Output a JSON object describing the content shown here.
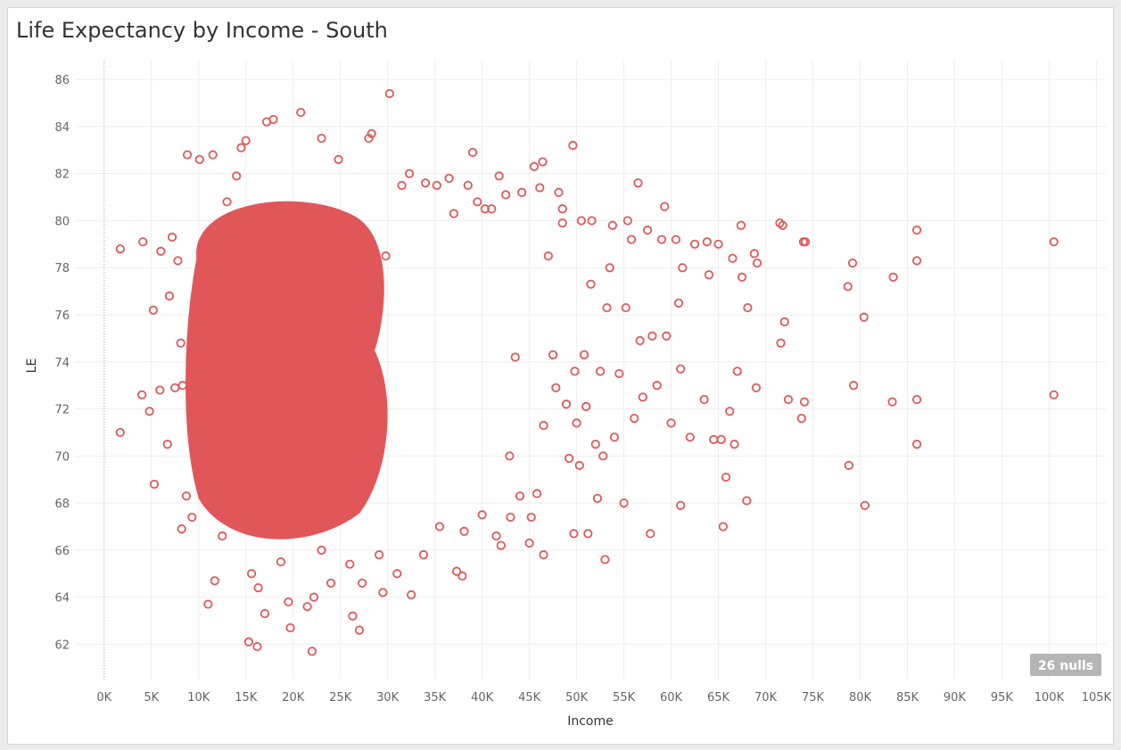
{
  "title": "Life Expectancy by Income - South",
  "nulls_badge": "26 nulls",
  "colors": {
    "mark": "#e15759",
    "grid": "#eeeeee",
    "zero_line": "#9a9a9a",
    "background": "#ffffff"
  },
  "chart_data": {
    "type": "scatter",
    "title": "Life Expectancy by Income - South",
    "xlabel": "Income",
    "ylabel": "LE",
    "xlim": [
      -3000,
      106000
    ],
    "ylim": [
      60.5,
      86.8
    ],
    "grid": true,
    "marker": "hollow-circle",
    "x_ticks": [
      0,
      5000,
      10000,
      15000,
      20000,
      25000,
      30000,
      35000,
      40000,
      45000,
      50000,
      55000,
      60000,
      65000,
      70000,
      75000,
      80000,
      85000,
      90000,
      95000,
      100000,
      105000
    ],
    "x_tick_labels": [
      "0K",
      "5K",
      "10K",
      "15K",
      "20K",
      "25K",
      "30K",
      "35K",
      "40K",
      "45K",
      "50K",
      "55K",
      "60K",
      "65K",
      "70K",
      "75K",
      "80K",
      "85K",
      "90K",
      "95K",
      "100K",
      "105K"
    ],
    "y_ticks": [
      62,
      64,
      66,
      68,
      70,
      72,
      74,
      76,
      78,
      80,
      82,
      84,
      86
    ],
    "y_tick_labels": [
      "62",
      "64",
      "66",
      "68",
      "70",
      "72",
      "74",
      "76",
      "78",
      "80",
      "82",
      "84",
      "86"
    ],
    "dense_regions": [
      {
        "x_range": [
          9000,
          30000
        ],
        "y_range": [
          66.5,
          81
        ],
        "note": "solid overlap cluster"
      }
    ],
    "points": [
      [
        1700,
        78.8
      ],
      [
        1700,
        71.0
      ],
      [
        4100,
        79.1
      ],
      [
        4000,
        72.6
      ],
      [
        4800,
        71.9
      ],
      [
        5200,
        76.2
      ],
      [
        5300,
        68.8
      ],
      [
        5900,
        72.8
      ],
      [
        6000,
        78.7
      ],
      [
        6700,
        70.5
      ],
      [
        6900,
        76.8
      ],
      [
        7200,
        79.3
      ],
      [
        7500,
        72.9
      ],
      [
        7800,
        78.3
      ],
      [
        8100,
        74.8
      ],
      [
        8300,
        73.0
      ],
      [
        8200,
        66.9
      ],
      [
        8800,
        82.8
      ],
      [
        8700,
        68.3
      ],
      [
        9300,
        67.4
      ],
      [
        10100,
        82.6
      ],
      [
        11500,
        82.8
      ],
      [
        11000,
        63.7
      ],
      [
        11700,
        64.7
      ],
      [
        12500,
        66.6
      ],
      [
        13000,
        80.8
      ],
      [
        14000,
        81.9
      ],
      [
        14500,
        83.1
      ],
      [
        15000,
        83.4
      ],
      [
        15300,
        62.1
      ],
      [
        16200,
        61.9
      ],
      [
        17000,
        63.3
      ],
      [
        15600,
        65.0
      ],
      [
        16300,
        64.4
      ],
      [
        17200,
        84.2
      ],
      [
        17900,
        84.3
      ],
      [
        18700,
        65.5
      ],
      [
        19500,
        63.8
      ],
      [
        19700,
        62.7
      ],
      [
        20800,
        84.6
      ],
      [
        21500,
        63.6
      ],
      [
        22000,
        61.7
      ],
      [
        22200,
        64.0
      ],
      [
        23000,
        66.0
      ],
      [
        23000,
        83.5
      ],
      [
        24000,
        64.6
      ],
      [
        24800,
        82.6
      ],
      [
        26000,
        65.4
      ],
      [
        26300,
        63.2
      ],
      [
        27000,
        62.6
      ],
      [
        27300,
        64.6
      ],
      [
        28000,
        83.5
      ],
      [
        28300,
        83.7
      ],
      [
        29100,
        65.8
      ],
      [
        29500,
        64.2
      ],
      [
        29800,
        78.5
      ],
      [
        30200,
        85.4
      ],
      [
        31000,
        65.0
      ],
      [
        31500,
        81.5
      ],
      [
        32500,
        64.1
      ],
      [
        32300,
        82.0
      ],
      [
        33800,
        65.8
      ],
      [
        34000,
        81.6
      ],
      [
        35200,
        81.5
      ],
      [
        35500,
        67.0
      ],
      [
        36500,
        81.8
      ],
      [
        37000,
        80.3
      ],
      [
        37300,
        65.1
      ],
      [
        37900,
        64.9
      ],
      [
        38100,
        66.8
      ],
      [
        38500,
        81.5
      ],
      [
        39000,
        82.9
      ],
      [
        39500,
        80.8
      ],
      [
        40000,
        67.5
      ],
      [
        40300,
        80.5
      ],
      [
        41000,
        80.5
      ],
      [
        41500,
        66.6
      ],
      [
        41800,
        81.9
      ],
      [
        42000,
        66.2
      ],
      [
        42500,
        81.1
      ],
      [
        42900,
        70.0
      ],
      [
        43000,
        67.4
      ],
      [
        43500,
        74.2
      ],
      [
        44000,
        68.3
      ],
      [
        44200,
        81.2
      ],
      [
        45000,
        66.3
      ],
      [
        45200,
        67.4
      ],
      [
        45500,
        82.3
      ],
      [
        45800,
        68.4
      ],
      [
        46100,
        81.4
      ],
      [
        46400,
        82.5
      ],
      [
        46500,
        65.8
      ],
      [
        46500,
        71.3
      ],
      [
        47000,
        78.5
      ],
      [
        47500,
        74.3
      ],
      [
        47800,
        72.9
      ],
      [
        48100,
        81.2
      ],
      [
        48500,
        79.9
      ],
      [
        48500,
        80.5
      ],
      [
        48900,
        72.2
      ],
      [
        49200,
        69.9
      ],
      [
        49600,
        83.2
      ],
      [
        49700,
        66.7
      ],
      [
        49800,
        73.6
      ],
      [
        50000,
        71.4
      ],
      [
        50300,
        69.6
      ],
      [
        50500,
        80.0
      ],
      [
        50800,
        74.3
      ],
      [
        51000,
        72.1
      ],
      [
        51200,
        66.7
      ],
      [
        51500,
        77.3
      ],
      [
        51600,
        80.0
      ],
      [
        52000,
        70.5
      ],
      [
        52200,
        68.2
      ],
      [
        52500,
        73.6
      ],
      [
        52800,
        70.0
      ],
      [
        53000,
        65.6
      ],
      [
        53200,
        76.3
      ],
      [
        53500,
        78.0
      ],
      [
        53800,
        79.8
      ],
      [
        54000,
        70.8
      ],
      [
        54500,
        73.5
      ],
      [
        55000,
        68.0
      ],
      [
        55200,
        76.3
      ],
      [
        55400,
        80.0
      ],
      [
        55800,
        79.2
      ],
      [
        56100,
        71.6
      ],
      [
        56500,
        81.6
      ],
      [
        56700,
        74.9
      ],
      [
        57000,
        72.5
      ],
      [
        57500,
        79.6
      ],
      [
        57800,
        66.7
      ],
      [
        58000,
        75.1
      ],
      [
        58500,
        73.0
      ],
      [
        59000,
        79.2
      ],
      [
        59300,
        80.6
      ],
      [
        59500,
        75.1
      ],
      [
        60000,
        71.4
      ],
      [
        60500,
        79.2
      ],
      [
        60800,
        76.5
      ],
      [
        61000,
        67.9
      ],
      [
        61000,
        73.7
      ],
      [
        61200,
        78.0
      ],
      [
        62000,
        70.8
      ],
      [
        62500,
        79.0
      ],
      [
        63500,
        72.4
      ],
      [
        63800,
        79.1
      ],
      [
        64000,
        77.7
      ],
      [
        64500,
        70.7
      ],
      [
        65000,
        79.0
      ],
      [
        65300,
        70.7
      ],
      [
        65500,
        67.0
      ],
      [
        65800,
        69.1
      ],
      [
        66200,
        71.9
      ],
      [
        66500,
        78.4
      ],
      [
        66700,
        70.5
      ],
      [
        67000,
        73.6
      ],
      [
        67400,
        79.8
      ],
      [
        67500,
        77.6
      ],
      [
        68000,
        68.1
      ],
      [
        68100,
        76.3
      ],
      [
        68800,
        78.6
      ],
      [
        69000,
        72.9
      ],
      [
        69100,
        78.2
      ],
      [
        71500,
        79.9
      ],
      [
        71600,
        74.8
      ],
      [
        71800,
        79.8
      ],
      [
        72000,
        75.7
      ],
      [
        72400,
        72.4
      ],
      [
        73800,
        71.6
      ],
      [
        74000,
        79.1
      ],
      [
        74100,
        72.3
      ],
      [
        74200,
        79.1
      ],
      [
        78700,
        77.2
      ],
      [
        78800,
        69.6
      ],
      [
        79200,
        78.2
      ],
      [
        79300,
        73.0
      ],
      [
        80400,
        75.9
      ],
      [
        80500,
        67.9
      ],
      [
        83400,
        72.3
      ],
      [
        83500,
        77.6
      ],
      [
        86000,
        79.6
      ],
      [
        86000,
        78.3
      ],
      [
        86000,
        72.4
      ],
      [
        86000,
        70.5
      ],
      [
        100500,
        79.1
      ],
      [
        100500,
        72.6
      ]
    ]
  }
}
